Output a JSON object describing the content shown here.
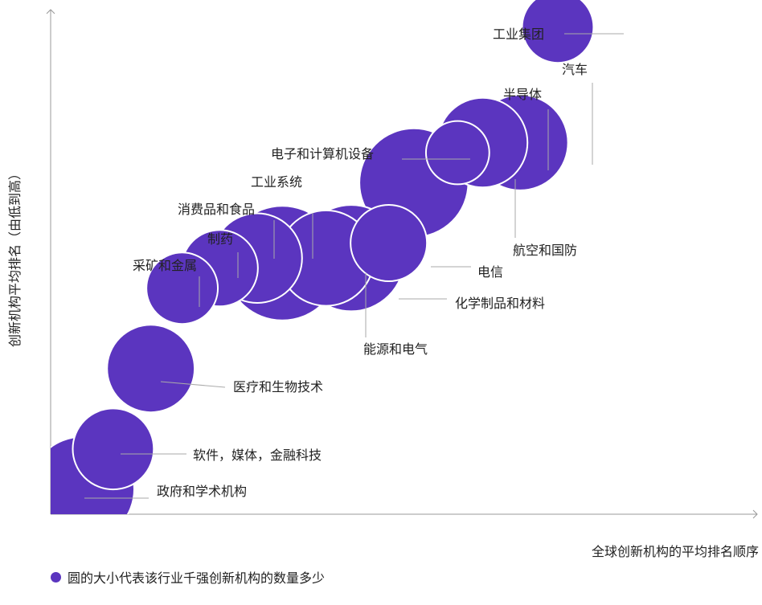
{
  "chart_data": {
    "type": "bubble",
    "xlabel": "全球创新机构的平均排名顺序",
    "ylabel": "创新机构平均排名（由低到高）",
    "xlim": [
      0,
      100
    ],
    "ylim": [
      0,
      100
    ],
    "bubble_color": "#5b35bf",
    "bubble_stroke": "#ffffff",
    "grid": false,
    "points": [
      {
        "label": "政府和学术机构",
        "x": 5,
        "y": 5,
        "size": 60
      },
      {
        "label": "软件，媒体，金融科技",
        "x": 10,
        "y": 13,
        "size": 36
      },
      {
        "label": "医疗和生物技术",
        "x": 16,
        "y": 29,
        "size": 42
      },
      {
        "label": "采矿和金属",
        "x": 21,
        "y": 45,
        "size": 28
      },
      {
        "label": "制药",
        "x": 27,
        "y": 49,
        "size": 32
      },
      {
        "label": "消费品和食品",
        "x": 33,
        "y": 51,
        "size": 44
      },
      {
        "label": "工业系统",
        "x": 37,
        "y": 50,
        "size": 72
      },
      {
        "label": "化学制品和材料",
        "x": 48,
        "y": 51,
        "size": 62
      },
      {
        "label": "能源和电气",
        "x": 44,
        "y": 51,
        "size": 50
      },
      {
        "label": "电信",
        "x": 54,
        "y": 54,
        "size": 32
      },
      {
        "label": "电子和计算机设备",
        "x": 58,
        "y": 66,
        "size": 65
      },
      {
        "label": "航空和国防",
        "x": 65,
        "y": 72,
        "size": 22
      },
      {
        "label": "半导体",
        "x": 69,
        "y": 74,
        "size": 44
      },
      {
        "label": "汽车",
        "x": 75,
        "y": 74,
        "size": 50
      },
      {
        "label": "工业集团",
        "x": 81,
        "y": 97,
        "size": 28
      }
    ]
  },
  "legend": {
    "text": "圆的大小代表该行业千强创新机构的数量多少",
    "color": "#5b35bf"
  }
}
